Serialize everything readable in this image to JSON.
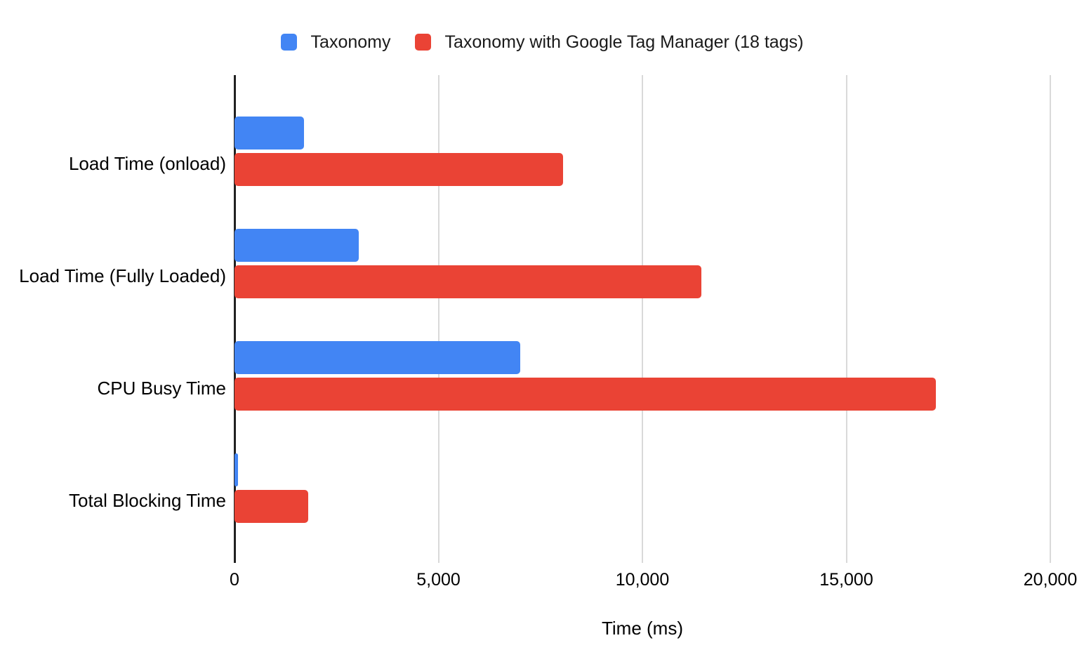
{
  "colors": {
    "series1": "#4285F4",
    "series2": "#EA4335",
    "axis_line": "#212121",
    "gridline": "#d9d9d9",
    "text": "#000000"
  },
  "legend": {
    "items": [
      {
        "label": "Taxonomy",
        "color": "#4285F4"
      },
      {
        "label": "Taxonomy with Google Tag Manager (18 tags)",
        "color": "#EA4335"
      }
    ]
  },
  "chart_data": {
    "type": "bar",
    "orientation": "horizontal",
    "title": "",
    "categories": [
      "Load Time (onload)",
      "Load Time (Fully Loaded)",
      "CPU Busy Time",
      "Total Blocking Time"
    ],
    "series": [
      {
        "name": "Taxonomy",
        "color": "#4285F4",
        "values": [
          1700,
          3050,
          7000,
          90
        ]
      },
      {
        "name": "Taxonomy with Google Tag Manager (18 tags)",
        "color": "#EA4335",
        "values": [
          8050,
          11450,
          17200,
          1800
        ]
      }
    ],
    "xlabel": "Time (ms)",
    "ylabel": "",
    "xlim": [
      0,
      20000
    ],
    "x_ticks": [
      0,
      5000,
      10000,
      15000,
      20000
    ],
    "x_tick_labels": [
      "0",
      "5,000",
      "10,000",
      "15,000",
      "20,000"
    ],
    "grid": true,
    "legend_position": "top"
  }
}
